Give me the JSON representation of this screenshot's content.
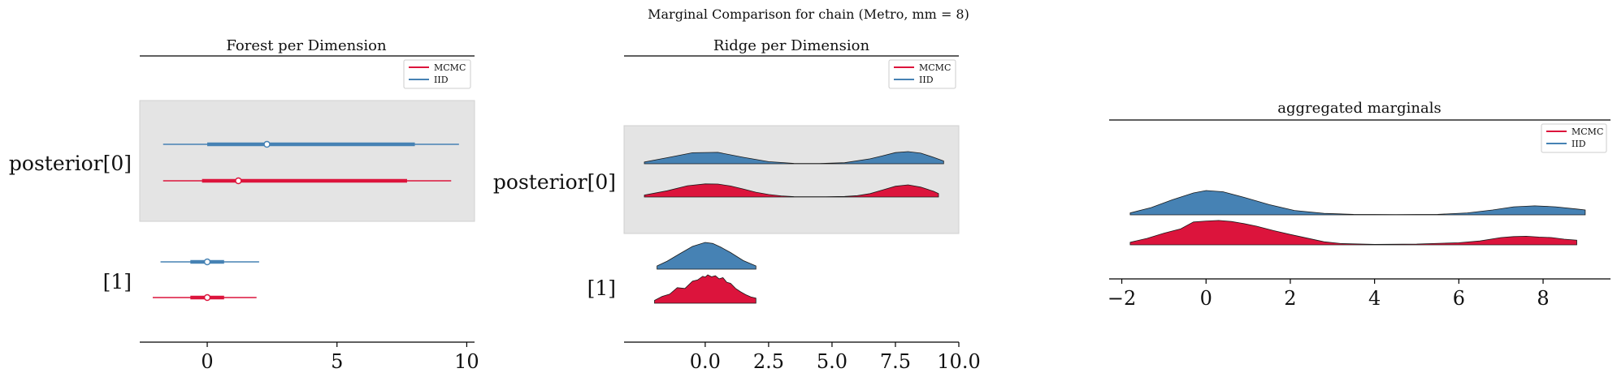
{
  "figure": {
    "suptitle": "Marginal Comparison for chain (Metro, mm = 8)"
  },
  "colors": {
    "mcmc": "#dc143c",
    "iid": "#4682b4",
    "band": "#e4e4e4",
    "axis": "#000000"
  },
  "legend": [
    "MCMC",
    "IID"
  ],
  "chart_data": [
    {
      "type": "forest",
      "title": "Forest per Dimension",
      "ylabels": [
        "posterior[0]",
        "[1]"
      ],
      "xticks": [
        0,
        5,
        10
      ],
      "xlim": [
        -2.6,
        10.3
      ],
      "legend": [
        "MCMC",
        "IID"
      ],
      "legend_placement": "top-right",
      "rows": [
        {
          "label": "posterior[0]",
          "series": [
            {
              "name": "IID",
              "hdi94": [
                -1.7,
                9.7
              ],
              "hdi50": [
                0.0,
                8.0
              ],
              "median": 2.3
            },
            {
              "name": "MCMC",
              "hdi94": [
                -1.7,
                9.4
              ],
              "hdi50": [
                -0.2,
                7.7
              ],
              "median": 1.2
            }
          ]
        },
        {
          "label": "[1]",
          "series": [
            {
              "name": "IID",
              "hdi94": [
                -1.8,
                2.0
              ],
              "hdi50": [
                -0.65,
                0.65
              ],
              "median": 0.0
            },
            {
              "name": "MCMC",
              "hdi94": [
                -2.1,
                1.9
              ],
              "hdi50": [
                -0.65,
                0.65
              ],
              "median": 0.0
            }
          ]
        }
      ]
    },
    {
      "type": "ridge",
      "title": "Ridge per Dimension",
      "ylabels": [
        "posterior[0]",
        "[1]"
      ],
      "xticks": [
        0.0,
        2.5,
        5.0,
        7.5,
        10.0
      ],
      "xtick_labels": [
        "0.0",
        "2.5",
        "5.0",
        "7.5",
        "10.0"
      ],
      "xlim": [
        -3.2,
        10.0
      ],
      "legend": [
        "MCMC",
        "IID"
      ],
      "legend_placement": "top-right",
      "rows": [
        {
          "label": "posterior[0]",
          "series": [
            {
              "name": "IID",
              "x": [
                -2.4,
                -1.5,
                -0.5,
                0.5,
                1.5,
                2.5,
                3.5,
                4.5,
                5.5,
                6.5,
                7.0,
                7.5,
                8.0,
                8.5,
                9.0,
                9.4
              ],
              "density": [
                0.14,
                0.47,
                0.85,
                0.88,
                0.5,
                0.16,
                0.03,
                0.02,
                0.08,
                0.38,
                0.62,
                0.86,
                0.94,
                0.82,
                0.5,
                0.22
              ]
            },
            {
              "name": "MCMC",
              "x": [
                -2.4,
                -1.5,
                -0.7,
                0.0,
                0.5,
                1.0,
                1.5,
                2.0,
                2.5,
                3.0,
                3.5,
                4.5,
                5.5,
                6.0,
                6.5,
                7.0,
                7.5,
                8.0,
                8.5,
                9.0,
                9.2
              ],
              "density": [
                0.14,
                0.45,
                0.82,
                0.95,
                0.94,
                0.8,
                0.58,
                0.35,
                0.18,
                0.08,
                0.03,
                0.02,
                0.04,
                0.1,
                0.25,
                0.52,
                0.78,
                0.88,
                0.72,
                0.42,
                0.25
              ]
            }
          ]
        },
        {
          "label": "[1]",
          "series": [
            {
              "name": "IID",
              "x": [
                -1.9,
                -1.5,
                -1.0,
                -0.5,
                0.0,
                0.3,
                0.6,
                1.0,
                1.5,
                2.0
              ],
              "density": [
                0.12,
                0.3,
                0.58,
                0.85,
                1.0,
                0.96,
                0.83,
                0.62,
                0.32,
                0.12
              ]
            },
            {
              "name": "MCMC",
              "x": [
                -2.0,
                -1.7,
                -1.4,
                -1.1,
                -0.8,
                -0.5,
                -0.3,
                -0.1,
                0.0,
                0.1,
                0.25,
                0.4,
                0.55,
                0.7,
                0.85,
                1.0,
                1.2,
                1.4,
                1.6,
                1.8,
                2.0
              ],
              "density": [
                0.1,
                0.24,
                0.32,
                0.55,
                0.52,
                0.78,
                0.82,
                0.95,
                0.92,
                1.0,
                0.93,
                0.97,
                0.86,
                0.9,
                0.74,
                0.7,
                0.52,
                0.4,
                0.3,
                0.22,
                0.18
              ]
            }
          ]
        }
      ]
    },
    {
      "type": "ridge",
      "title": "aggregated marginals",
      "xticks": [
        -2,
        0,
        2,
        4,
        6,
        8
      ],
      "xtick_labels": [
        "−2",
        "0",
        "2",
        "4",
        "6",
        "8"
      ],
      "xlim": [
        -2.3,
        9.6
      ],
      "legend": [
        "MCMC",
        "IID"
      ],
      "legend_placement": "top-right",
      "rows": [
        {
          "label": "",
          "series": [
            {
              "name": "IID",
              "x": [
                -1.8,
                -1.3,
                -0.8,
                -0.3,
                0.0,
                0.4,
                0.9,
                1.5,
                2.1,
                2.8,
                3.5,
                4.5,
                5.5,
                6.2,
                6.8,
                7.3,
                7.8,
                8.3,
                8.8,
                9.0
              ],
              "density": [
                0.08,
                0.3,
                0.62,
                0.9,
                1.0,
                0.95,
                0.72,
                0.42,
                0.18,
                0.06,
                0.02,
                0.01,
                0.02,
                0.08,
                0.2,
                0.33,
                0.37,
                0.33,
                0.24,
                0.2
              ]
            },
            {
              "name": "MCMC",
              "x": [
                -1.8,
                -1.4,
                -1.0,
                -0.6,
                -0.3,
                0.0,
                0.3,
                0.6,
                0.9,
                1.2,
                1.6,
                2.0,
                2.4,
                2.8,
                3.2,
                4.0,
                5.0,
                6.0,
                6.5,
                7.0,
                7.3,
                7.6,
                7.9,
                8.2,
                8.5,
                8.8
              ],
              "density": [
                0.1,
                0.25,
                0.45,
                0.62,
                0.88,
                0.92,
                0.94,
                0.9,
                0.82,
                0.72,
                0.55,
                0.4,
                0.26,
                0.12,
                0.05,
                0.02,
                0.03,
                0.08,
                0.15,
                0.28,
                0.32,
                0.33,
                0.3,
                0.28,
                0.22,
                0.18
              ]
            }
          ]
        }
      ]
    }
  ]
}
